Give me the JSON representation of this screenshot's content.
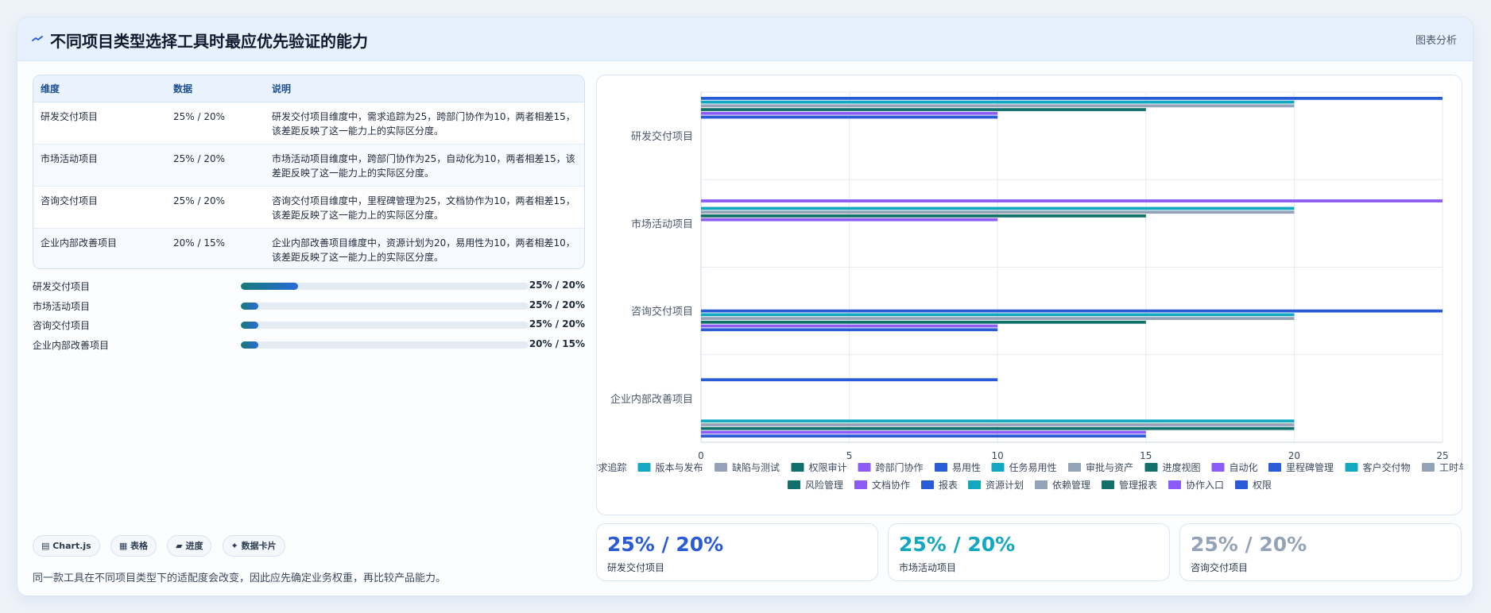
{
  "header": {
    "title": "不同项目类型选择工具时最应优先验证的能力",
    "tag": "图表分析"
  },
  "table": {
    "columns": [
      "维度",
      "数据",
      "说明"
    ],
    "rows": [
      {
        "dim": "研发交付项目",
        "data": "25% / 20%",
        "desc": "研发交付项目维度中，需求追踪为25，跨部门协作为10，两者相差15，该差距反映了这一能力上的实际区分度。"
      },
      {
        "dim": "市场活动项目",
        "data": "25% / 20%",
        "desc": "市场活动项目维度中，跨部门协作为25，自动化为10，两者相差15，该差距反映了这一能力上的实际区分度。"
      },
      {
        "dim": "咨询交付项目",
        "data": "25% / 20%",
        "desc": "咨询交付项目维度中，里程碑管理为25，文档协作为10，两者相差15，该差距反映了这一能力上的实际区分度。"
      },
      {
        "dim": "企业内部改善项目",
        "data": "20% / 15%",
        "desc": "企业内部改善项目维度中，资源计划为20，易用性为10，两者相差10，该差距反映了这一能力上的实际区分度。"
      }
    ]
  },
  "progress": [
    {
      "label": "研发交付项目",
      "value": "25% / 20%",
      "fill": 0.2
    },
    {
      "label": "市场活动项目",
      "value": "25% / 20%",
      "fill": 0.06
    },
    {
      "label": "咨询交付项目",
      "value": "25% / 20%",
      "fill": 0.06
    },
    {
      "label": "企业内部改善项目",
      "value": "20% / 15%",
      "fill": 0.06
    }
  ],
  "chips": [
    "▤ Chart.js",
    "▦ 表格",
    "▰ 进度",
    "✦ 数据卡片"
  ],
  "footnote": "同一款工具在不同项目类型下的适配度会改变，因此应先确定业务权重，再比较产品能力。",
  "stats": [
    {
      "value": "25% / 20%",
      "label": "研发交付项目",
      "color": "#2a5bd7"
    },
    {
      "value": "25% / 20%",
      "label": "市场活动项目",
      "color": "#13a8c2"
    },
    {
      "value": "25% / 20%",
      "label": "咨询交付项目",
      "color": "#94a3b8"
    }
  ],
  "chart_data": {
    "type": "bar",
    "orientation": "horizontal",
    "categories": [
      "研发交付项目",
      "市场活动项目",
      "咨询交付项目",
      "企业内部改善项目"
    ],
    "xlim": [
      0,
      25
    ],
    "xticks": [
      0,
      5,
      10,
      15,
      20,
      25
    ],
    "grid": true,
    "legend_position": "bottom",
    "series": [
      {
        "name": "需求追踪",
        "color": "#2a5bd7",
        "values": [
          25,
          null,
          null,
          null
        ]
      },
      {
        "name": "版本与发布",
        "color": "#13a8c2",
        "values": [
          20,
          null,
          null,
          null
        ]
      },
      {
        "name": "缺陷与测试",
        "color": "#94a3b8",
        "values": [
          20,
          null,
          null,
          null
        ]
      },
      {
        "name": "权限审计",
        "color": "#11706b",
        "values": [
          15,
          null,
          null,
          null
        ]
      },
      {
        "name": "跨部门协作",
        "color": "#8b5cf6",
        "values": [
          10,
          25,
          null,
          null
        ]
      },
      {
        "name": "易用性",
        "color": "#2a5bd7",
        "values": [
          10,
          null,
          null,
          10
        ]
      },
      {
        "name": "任务易用性",
        "color": "#13a8c2",
        "values": [
          null,
          20,
          null,
          null
        ]
      },
      {
        "name": "审批与资产",
        "color": "#94a3b8",
        "values": [
          null,
          20,
          null,
          null
        ]
      },
      {
        "name": "进度视图",
        "color": "#11706b",
        "values": [
          null,
          15,
          null,
          null
        ]
      },
      {
        "name": "自动化",
        "color": "#8b5cf6",
        "values": [
          null,
          10,
          null,
          null
        ]
      },
      {
        "name": "里程碑管理",
        "color": "#2a5bd7",
        "values": [
          null,
          null,
          25,
          null
        ]
      },
      {
        "name": "客户交付物",
        "color": "#13a8c2",
        "values": [
          null,
          null,
          20,
          null
        ]
      },
      {
        "name": "工时与资源",
        "color": "#94a3b8",
        "values": [
          null,
          null,
          20,
          null
        ]
      },
      {
        "name": "风险管理",
        "color": "#11706b",
        "values": [
          null,
          null,
          15,
          null
        ]
      },
      {
        "name": "文档协作",
        "color": "#8b5cf6",
        "values": [
          null,
          null,
          10,
          null
        ]
      },
      {
        "name": "报表",
        "color": "#2a5bd7",
        "values": [
          null,
          null,
          10,
          null
        ]
      },
      {
        "name": "资源计划",
        "color": "#13a8c2",
        "values": [
          null,
          null,
          null,
          20
        ]
      },
      {
        "name": "依赖管理",
        "color": "#94a3b8",
        "values": [
          null,
          null,
          null,
          20
        ]
      },
      {
        "name": "管理报表",
        "color": "#11706b",
        "values": [
          null,
          null,
          null,
          20
        ]
      },
      {
        "name": "协作入口",
        "color": "#8b5cf6",
        "values": [
          null,
          null,
          null,
          15
        ]
      },
      {
        "name": "权限",
        "color": "#2a5bd7",
        "values": [
          null,
          null,
          null,
          15
        ]
      }
    ]
  }
}
